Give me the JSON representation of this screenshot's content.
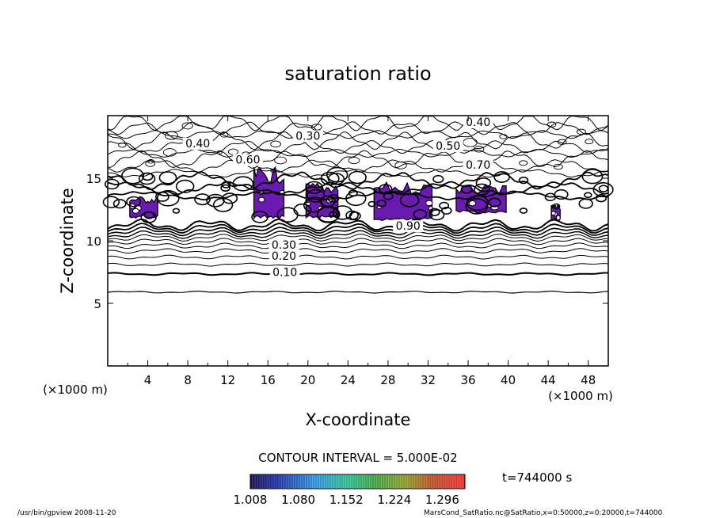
{
  "chart_data": {
    "type": "contour",
    "title": "saturation ratio",
    "xlabel": "X-coordinate",
    "ylabel": "Z-coordinate",
    "x_unit_left": "(×1000 m)",
    "x_unit_right": "(×1000 m)",
    "xlim": [
      0,
      50
    ],
    "ylim": [
      0,
      20
    ],
    "x_ticks": [
      4,
      8,
      12,
      16,
      20,
      24,
      28,
      32,
      36,
      40,
      44,
      48
    ],
    "y_ticks": [
      5,
      10,
      15
    ],
    "contour_interval_text": "CONTOUR INTERVAL = 5.000E-02",
    "contour_labels": [
      {
        "text": "0.10",
        "x": 17.7,
        "z": 7.3
      },
      {
        "text": "0.20",
        "x": 17.6,
        "z": 8.6
      },
      {
        "text": "0.30",
        "x": 17.6,
        "z": 9.5
      },
      {
        "text": "0.30",
        "x": 20.0,
        "z": 18.2
      },
      {
        "text": "0.40",
        "x": 9.0,
        "z": 17.6
      },
      {
        "text": "0.40",
        "x": 37.0,
        "z": 19.3
      },
      {
        "text": "0.50",
        "x": 34.0,
        "z": 17.4
      },
      {
        "text": "0.60",
        "x": 14.0,
        "z": 16.3
      },
      {
        "text": "0.70",
        "x": 37.0,
        "z": 15.9
      },
      {
        "text": "0.90",
        "x": 30.0,
        "z": 11.0
      }
    ],
    "colorbar": {
      "ticks": [
        "1.008",
        "1.080",
        "1.152",
        "1.224",
        "1.296"
      ],
      "min": 1.008,
      "max": 1.33
    },
    "supersaturated_regions": [
      {
        "x": [
          2.2,
          5.0
        ],
        "z": [
          11.8,
          13.4
        ]
      },
      {
        "x": [
          14.6,
          17.6
        ],
        "z": [
          11.8,
          15.5
        ]
      },
      {
        "x": [
          19.8,
          23.0
        ],
        "z": [
          11.8,
          14.4
        ]
      },
      {
        "x": [
          26.6,
          32.4
        ],
        "z": [
          11.6,
          14.4
        ]
      },
      {
        "x": [
          34.8,
          39.8
        ],
        "z": [
          12.2,
          14.2
        ]
      },
      {
        "x": [
          44.3,
          45.2
        ],
        "z": [
          11.6,
          12.8
        ]
      }
    ],
    "time_label": "t=744000 s"
  },
  "footer": {
    "left": "/usr/bin/gpview  2008-11-20",
    "right": "MarsCond_SatRatio.nc@SatRatio,x=0:50000,z=0:20000,t=744000"
  },
  "colors": {
    "supersaturation_fill": "#6a1ab0",
    "line": "#000000"
  }
}
